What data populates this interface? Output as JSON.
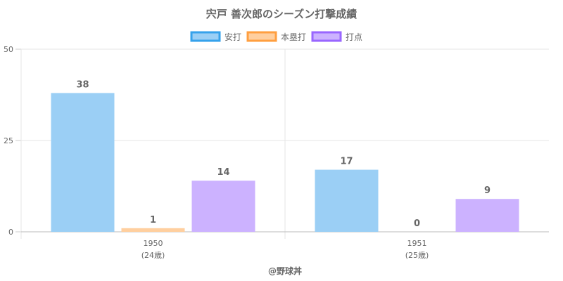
{
  "chart_data": {
    "type": "bar",
    "title": "宍戸 善次郎のシーズン打撃成績",
    "categories": [
      {
        "year": "1950",
        "age": "(24歳)"
      },
      {
        "year": "1951",
        "age": "(25歳)"
      }
    ],
    "series": [
      {
        "name": "安打",
        "values": [
          38,
          17
        ],
        "labels": [
          "38",
          "17"
        ],
        "fill": "#9bcff5",
        "stroke": "#36a2eb"
      },
      {
        "name": "本塁打",
        "values": [
          1,
          0
        ],
        "labels": [
          "1",
          "0"
        ],
        "fill": "#ffcf9f",
        "stroke": "#ff9f40"
      },
      {
        "name": "打点",
        "values": [
          14,
          9
        ],
        "labels": [
          "14",
          "9"
        ],
        "fill": "#ccb2ff",
        "stroke": "#9966ff"
      }
    ],
    "ylim": [
      0,
      50
    ],
    "yticks": [
      "0",
      "25",
      "50"
    ],
    "grid": true,
    "legend_position": "top",
    "footer": "@野球丼"
  }
}
